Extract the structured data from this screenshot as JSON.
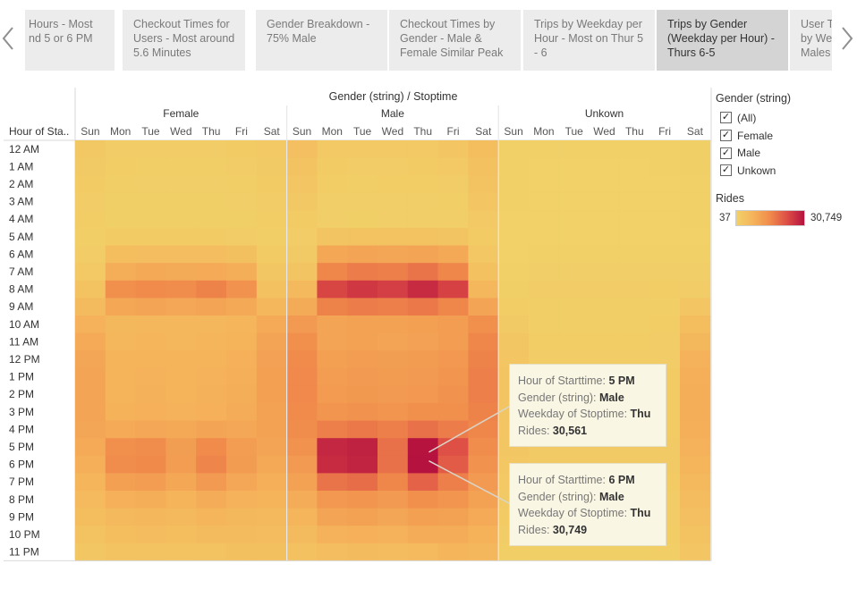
{
  "story": {
    "tabs": [
      {
        "label": "Hours - Most\nnd 5 or 6 PM",
        "active": false
      },
      {
        "label": "Checkout Times for Users - Most around 5.6 Minutes",
        "active": false
      },
      {
        "label": "Gender Breakdown - 75% Male",
        "active": false
      },
      {
        "label": "Checkout Times by Gender - Male & Female Similar Peak",
        "active": false
      },
      {
        "label": "Trips by Weekday per Hour - Most on Thur 5 - 6",
        "active": false
      },
      {
        "label": "Trips by Gender (Weekday per Hour) - Thurs 6-5",
        "active": true
      },
      {
        "label": "User Tr\nby Wee\nMales",
        "active": false
      }
    ],
    "prev_icon": "chevron-left-icon",
    "next_icon": "chevron-right-icon"
  },
  "filter": {
    "title": "Gender (string)",
    "items": [
      {
        "label": "(All)",
        "checked": true
      },
      {
        "label": "Female",
        "checked": true
      },
      {
        "label": "Male",
        "checked": true
      },
      {
        "label": "Unkown",
        "checked": true
      }
    ]
  },
  "legend": {
    "title": "Rides",
    "min_label": "37",
    "max_label": "30,749",
    "colors": [
      "#f1d168",
      "#f5b35a",
      "#f08a4b",
      "#dd4d45",
      "#b5123f"
    ]
  },
  "tooltips": [
    {
      "rows": [
        {
          "key": "Hour of Starttime:",
          "value": "5 PM"
        },
        {
          "key": "Gender (string):",
          "value": "Male"
        },
        {
          "key": "Weekday of Stoptime:",
          "value": "Thu"
        },
        {
          "key": "Rides:",
          "value": "30,561"
        }
      ],
      "target": {
        "gender": "Male",
        "day": "Thu",
        "hour": "5 PM"
      }
    },
    {
      "rows": [
        {
          "key": "Hour of Starttime:",
          "value": "6 PM"
        },
        {
          "key": "Gender (string):",
          "value": "Male"
        },
        {
          "key": "Weekday of Stoptime:",
          "value": "Thu"
        },
        {
          "key": "Rides:",
          "value": "30,749"
        }
      ],
      "target": {
        "gender": "Male",
        "day": "Thu",
        "hour": "6 PM"
      }
    }
  ],
  "chart_data": {
    "type": "heatmap",
    "title": "Gender (string) / Stoptime",
    "row_header": "Hour of Sta..",
    "groups": [
      "Female",
      "Male",
      "Unkown"
    ],
    "days": [
      "Sun",
      "Mon",
      "Tue",
      "Wed",
      "Thu",
      "Fri",
      "Sat"
    ],
    "hours": [
      "12 AM",
      "1 AM",
      "2 AM",
      "3 AM",
      "4 AM",
      "5 AM",
      "6 AM",
      "7 AM",
      "8 AM",
      "9 AM",
      "10 AM",
      "11 AM",
      "12 PM",
      "1 PM",
      "2 PM",
      "3 PM",
      "4 PM",
      "5 PM",
      "6 PM",
      "7 PM",
      "8 PM",
      "9 PM",
      "10 PM",
      "11 PM"
    ],
    "color_range": [
      37,
      30749
    ],
    "values": {
      "Female": [
        [
          1500,
          800,
          700,
          700,
          800,
          1000,
          1300
        ],
        [
          1200,
          600,
          500,
          500,
          500,
          700,
          1200
        ],
        [
          1000,
          500,
          400,
          400,
          400,
          500,
          1000
        ],
        [
          800,
          300,
          300,
          300,
          300,
          400,
          800
        ],
        [
          600,
          300,
          300,
          300,
          300,
          300,
          600
        ],
        [
          500,
          900,
          900,
          900,
          900,
          800,
          500
        ],
        [
          700,
          3500,
          3800,
          3700,
          3700,
          3200,
          900
        ],
        [
          1400,
          7000,
          7800,
          7500,
          7600,
          6900,
          1700
        ],
        [
          2600,
          12500,
          13500,
          13000,
          14500,
          12000,
          3000
        ],
        [
          4300,
          8000,
          8500,
          8200,
          8700,
          7800,
          5200
        ],
        [
          6200,
          5000,
          5200,
          5100,
          5200,
          5500,
          7600
        ],
        [
          7600,
          5200,
          5300,
          5200,
          5300,
          5800,
          8800
        ],
        [
          8300,
          5800,
          6000,
          5800,
          6000,
          6500,
          9200
        ],
        [
          8700,
          6000,
          6200,
          6000,
          6200,
          6800,
          9500
        ],
        [
          8700,
          6000,
          6400,
          6000,
          6400,
          7000,
          9500
        ],
        [
          8600,
          6300,
          6600,
          6200,
          6600,
          7200,
          9300
        ],
        [
          8300,
          7700,
          8200,
          7800,
          8500,
          8200,
          9000
        ],
        [
          7700,
          12500,
          13200,
          9800,
          13500,
          10000,
          8500
        ],
        [
          6800,
          13000,
          13600,
          10000,
          14300,
          10200,
          7800
        ],
        [
          5600,
          9500,
          10000,
          8000,
          10500,
          8200,
          6800
        ],
        [
          4500,
          6500,
          7000,
          6000,
          7200,
          6200,
          5800
        ],
        [
          3500,
          4800,
          5200,
          4600,
          5400,
          5000,
          4800
        ],
        [
          2600,
          3600,
          4000,
          3500,
          4200,
          4200,
          4000
        ],
        [
          1800,
          2400,
          2600,
          2400,
          2800,
          3200,
          3200
        ]
      ],
      "Male": [
        [
          3300,
          1400,
          1300,
          1300,
          1400,
          2000,
          3600
        ],
        [
          2600,
          900,
          800,
          800,
          900,
          1300,
          3000
        ],
        [
          2000,
          600,
          500,
          600,
          600,
          800,
          2500
        ],
        [
          1500,
          400,
          400,
          400,
          400,
          500,
          2000
        ],
        [
          1000,
          400,
          300,
          400,
          400,
          400,
          1400
        ],
        [
          800,
          2300,
          2400,
          2400,
          2400,
          2200,
          900
        ],
        [
          1200,
          8000,
          8600,
          8400,
          8600,
          7800,
          1600
        ],
        [
          2300,
          14000,
          15500,
          15000,
          16500,
          14000,
          3000
        ],
        [
          4600,
          23000,
          25000,
          24000,
          27000,
          23500,
          5200
        ],
        [
          7400,
          14500,
          15500,
          15000,
          16000,
          14000,
          8500
        ],
        [
          10500,
          8500,
          9000,
          9000,
          9500,
          10000,
          12500
        ],
        [
          12500,
          8500,
          9000,
          8800,
          9200,
          10000,
          14000
        ],
        [
          13500,
          9500,
          10000,
          9800,
          10200,
          11000,
          14500
        ],
        [
          13800,
          10000,
          10500,
          10200,
          10500,
          11500,
          15000
        ],
        [
          13700,
          10300,
          10800,
          10500,
          11000,
          11800,
          15000
        ],
        [
          13500,
          11500,
          12000,
          11500,
          12500,
          12500,
          14500
        ],
        [
          13000,
          15000,
          16000,
          15000,
          17000,
          15500,
          14000
        ],
        [
          12000,
          27500,
          28500,
          17000,
          30561,
          21500,
          13000
        ],
        [
          10500,
          27000,
          28000,
          17000,
          30749,
          20000,
          12000
        ],
        [
          9000,
          16500,
          17500,
          14000,
          19000,
          15000,
          10500
        ],
        [
          7200,
          11000,
          11500,
          10500,
          12500,
          11500,
          9000
        ],
        [
          5600,
          8500,
          9000,
          8300,
          9500,
          9000,
          7600
        ],
        [
          4200,
          6200,
          6600,
          6200,
          7200,
          7200,
          6300
        ],
        [
          3000,
          3800,
          4200,
          4000,
          4500,
          5300,
          5200
        ]
      ],
      "Unkown": [
        [
          200,
          100,
          100,
          100,
          100,
          150,
          300
        ],
        [
          150,
          80,
          70,
          70,
          80,
          100,
          250
        ],
        [
          120,
          60,
          50,
          50,
          60,
          80,
          200
        ],
        [
          100,
          50,
          40,
          40,
          50,
          60,
          150
        ],
        [
          80,
          40,
          37,
          40,
          40,
          50,
          120
        ],
        [
          60,
          80,
          80,
          80,
          80,
          70,
          80
        ],
        [
          80,
          200,
          200,
          200,
          200,
          180,
          150
        ],
        [
          150,
          400,
          400,
          400,
          400,
          380,
          400
        ],
        [
          300,
          700,
          700,
          700,
          700,
          650,
          800
        ],
        [
          600,
          500,
          500,
          500,
          500,
          500,
          2000
        ],
        [
          1200,
          500,
          500,
          500,
          500,
          600,
          3500
        ],
        [
          1700,
          600,
          600,
          600,
          600,
          700,
          5000
        ],
        [
          2000,
          700,
          700,
          700,
          700,
          800,
          6200
        ],
        [
          2200,
          700,
          700,
          700,
          700,
          900,
          6800
        ],
        [
          2200,
          700,
          700,
          700,
          700,
          900,
          7000
        ],
        [
          2100,
          750,
          750,
          750,
          750,
          950,
          7000
        ],
        [
          2000,
          900,
          900,
          900,
          900,
          1000,
          6800
        ],
        [
          1800,
          1200,
          1200,
          1100,
          1200,
          1100,
          6200
        ],
        [
          1600,
          1200,
          1200,
          1100,
          1200,
          1100,
          5500
        ],
        [
          1400,
          1000,
          1000,
          900,
          1000,
          1000,
          4800
        ],
        [
          1100,
          700,
          700,
          700,
          700,
          800,
          4000
        ],
        [
          900,
          500,
          500,
          500,
          500,
          700,
          3300
        ],
        [
          700,
          400,
          400,
          400,
          400,
          600,
          2600
        ],
        [
          500,
          300,
          300,
          300,
          300,
          500,
          2000
        ]
      ]
    }
  }
}
